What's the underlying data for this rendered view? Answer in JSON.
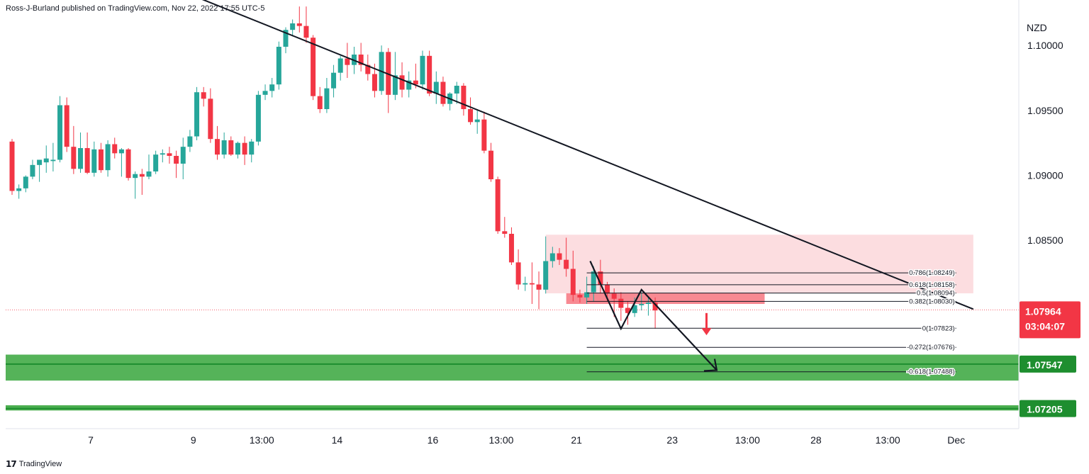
{
  "header": {
    "publisher_text": "Ross-J-Burland published on TradingView.com, Nov 22, 2022 17:55 UTC-5"
  },
  "footer": {
    "brand_label": "TradingView",
    "logo_glyph": "17"
  },
  "colors": {
    "up": "#26a69a",
    "down": "#f23645",
    "zone": "#4caf50",
    "zone_line": "#1e8e2f",
    "pink_zone": "#fcdde0",
    "red_zone": "#f77c86",
    "line": "#131722",
    "arrow": "#f23645"
  },
  "chart_data": {
    "type": "candlestick",
    "symbol_unit": "NZD",
    "y_axis": {
      "ylim": [
        1.0705,
        1.1035
      ],
      "ticks": [
        "1.10000",
        "1.09500",
        "1.09000",
        "1.08500"
      ],
      "tick_values": [
        1.1,
        1.095,
        1.09,
        1.085
      ]
    },
    "x_axis": {
      "tick_labels": [
        "7",
        "9",
        "13:00",
        "14",
        "16",
        "13:00",
        "21",
        "23",
        "13:00",
        "28",
        "13:00",
        "Dec"
      ],
      "tick_index": [
        11.5,
        26.5,
        36.5,
        47.5,
        61.5,
        71.5,
        82.5,
        96.5,
        107.5,
        117.5,
        128,
        138
      ]
    },
    "candles": [
      {
        "o": 1.0926,
        "h": 1.0928,
        "l": 1.0885,
        "c": 1.0888
      },
      {
        "o": 1.0888,
        "h": 1.0893,
        "l": 1.0882,
        "c": 1.089
      },
      {
        "o": 1.089,
        "h": 1.09,
        "l": 1.0887,
        "c": 1.0899
      },
      {
        "o": 1.0899,
        "h": 1.0912,
        "l": 1.0897,
        "c": 1.0908
      },
      {
        "o": 1.0908,
        "h": 1.0911,
        "l": 1.0895,
        "c": 1.0912
      },
      {
        "o": 1.091,
        "h": 1.0923,
        "l": 1.0902,
        "c": 1.0913
      },
      {
        "o": 1.0911,
        "h": 1.0925,
        "l": 1.0903,
        "c": 1.0912
      },
      {
        "o": 1.0912,
        "h": 1.0961,
        "l": 1.091,
        "c": 1.0954
      },
      {
        "o": 1.0954,
        "h": 1.096,
        "l": 1.0918,
        "c": 1.0922
      },
      {
        "o": 1.0922,
        "h": 1.0938,
        "l": 1.0901,
        "c": 1.0905
      },
      {
        "o": 1.0905,
        "h": 1.0933,
        "l": 1.0902,
        "c": 1.0921
      },
      {
        "o": 1.0921,
        "h": 1.0933,
        "l": 1.0901,
        "c": 1.0902
      },
      {
        "o": 1.0902,
        "h": 1.0926,
        "l": 1.0899,
        "c": 1.092
      },
      {
        "o": 1.092,
        "h": 1.0925,
        "l": 1.0902,
        "c": 1.0904
      },
      {
        "o": 1.0904,
        "h": 1.0927,
        "l": 1.0899,
        "c": 1.0924
      },
      {
        "o": 1.0924,
        "h": 1.0929,
        "l": 1.0913,
        "c": 1.0917
      },
      {
        "o": 1.0917,
        "h": 1.0921,
        "l": 1.0899,
        "c": 1.092
      },
      {
        "o": 1.092,
        "h": 1.0921,
        "l": 1.0896,
        "c": 1.0898
      },
      {
        "o": 1.0898,
        "h": 1.0903,
        "l": 1.0882,
        "c": 1.0901
      },
      {
        "o": 1.0901,
        "h": 1.0905,
        "l": 1.0885,
        "c": 1.0899
      },
      {
        "o": 1.0899,
        "h": 1.0916,
        "l": 1.0897,
        "c": 1.0903
      },
      {
        "o": 1.0903,
        "h": 1.0919,
        "l": 1.0901,
        "c": 1.0916
      },
      {
        "o": 1.0916,
        "h": 1.092,
        "l": 1.091,
        "c": 1.0917
      },
      {
        "o": 1.0917,
        "h": 1.0922,
        "l": 1.0909,
        "c": 1.0915
      },
      {
        "o": 1.0915,
        "h": 1.0919,
        "l": 1.0898,
        "c": 1.0909
      },
      {
        "o": 1.0909,
        "h": 1.0929,
        "l": 1.0897,
        "c": 1.0922
      },
      {
        "o": 1.0922,
        "h": 1.0935,
        "l": 1.0918,
        "c": 1.093
      },
      {
        "o": 1.093,
        "h": 1.0968,
        "l": 1.0927,
        "c": 1.0964
      },
      {
        "o": 1.0964,
        "h": 1.0968,
        "l": 1.0953,
        "c": 1.0959
      },
      {
        "o": 1.0959,
        "h": 1.0967,
        "l": 1.0925,
        "c": 1.0928
      },
      {
        "o": 1.0928,
        "h": 1.0938,
        "l": 1.0912,
        "c": 1.0916
      },
      {
        "o": 1.0916,
        "h": 1.0933,
        "l": 1.0913,
        "c": 1.0927
      },
      {
        "o": 1.0927,
        "h": 1.093,
        "l": 1.0915,
        "c": 1.0916
      },
      {
        "o": 1.0916,
        "h": 1.0926,
        "l": 1.0913,
        "c": 1.0925
      },
      {
        "o": 1.0925,
        "h": 1.093,
        "l": 1.0908,
        "c": 1.0916
      },
      {
        "o": 1.0916,
        "h": 1.0928,
        "l": 1.091,
        "c": 1.0926
      },
      {
        "o": 1.0926,
        "h": 1.0965,
        "l": 1.0923,
        "c": 1.0962
      },
      {
        "o": 1.0962,
        "h": 1.097,
        "l": 1.0958,
        "c": 1.0965
      },
      {
        "o": 1.0965,
        "h": 1.0975,
        "l": 1.096,
        "c": 1.097
      },
      {
        "o": 1.097,
        "h": 1.1003,
        "l": 1.0966,
        "c": 1.0999
      },
      {
        "o": 1.0999,
        "h": 1.1014,
        "l": 1.0994,
        "c": 1.1012
      },
      {
        "o": 1.1012,
        "h": 1.102,
        "l": 1.1007,
        "c": 1.1017
      },
      {
        "o": 1.1017,
        "h": 1.103,
        "l": 1.101,
        "c": 1.1015
      },
      {
        "o": 1.1015,
        "h": 1.103,
        "l": 1.1002,
        "c": 1.1006
      },
      {
        "o": 1.1006,
        "h": 1.1008,
        "l": 1.0958,
        "c": 1.0961
      },
      {
        "o": 1.0961,
        "h": 1.0968,
        "l": 1.0948,
        "c": 1.0951
      },
      {
        "o": 1.0951,
        "h": 1.0975,
        "l": 1.0948,
        "c": 1.0967
      },
      {
        "o": 1.0967,
        "h": 1.0985,
        "l": 1.096,
        "c": 1.0979
      },
      {
        "o": 1.0979,
        "h": 1.0992,
        "l": 1.0973,
        "c": 1.099
      },
      {
        "o": 1.099,
        "h": 1.1002,
        "l": 1.0975,
        "c": 1.0985
      },
      {
        "o": 1.0985,
        "h": 1.0999,
        "l": 1.0978,
        "c": 1.0993
      },
      {
        "o": 1.0993,
        "h": 1.1002,
        "l": 1.098,
        "c": 1.0985
      },
      {
        "o": 1.0985,
        "h": 1.0993,
        "l": 1.0973,
        "c": 1.0978
      },
      {
        "o": 1.0978,
        "h": 1.0986,
        "l": 1.096,
        "c": 1.0965
      },
      {
        "o": 1.0965,
        "h": 1.1,
        "l": 1.0962,
        "c": 1.0995
      },
      {
        "o": 1.0995,
        "h": 1.0998,
        "l": 1.0948,
        "c": 1.0962
      },
      {
        "o": 1.0962,
        "h": 1.0995,
        "l": 1.0958,
        "c": 1.0977
      },
      {
        "o": 1.0977,
        "h": 1.0987,
        "l": 1.096,
        "c": 1.0966
      },
      {
        "o": 1.0966,
        "h": 1.098,
        "l": 1.096,
        "c": 1.0973
      },
      {
        "o": 1.0973,
        "h": 1.0986,
        "l": 1.0967,
        "c": 1.097
      },
      {
        "o": 1.097,
        "h": 1.0996,
        "l": 1.0966,
        "c": 1.0992
      },
      {
        "o": 1.0992,
        "h": 1.0996,
        "l": 1.0961,
        "c": 1.0963
      },
      {
        "o": 1.0963,
        "h": 1.098,
        "l": 1.0955,
        "c": 1.0972
      },
      {
        "o": 1.0972,
        "h": 1.0976,
        "l": 1.0953,
        "c": 1.0955
      },
      {
        "o": 1.0955,
        "h": 1.0964,
        "l": 1.095,
        "c": 1.0963
      },
      {
        "o": 1.0963,
        "h": 1.0972,
        "l": 1.0955,
        "c": 1.0969
      },
      {
        "o": 1.0969,
        "h": 1.0971,
        "l": 1.0946,
        "c": 1.0951
      },
      {
        "o": 1.0951,
        "h": 1.096,
        "l": 1.0939,
        "c": 1.0941
      },
      {
        "o": 1.0941,
        "h": 1.0951,
        "l": 1.0932,
        "c": 1.0943
      },
      {
        "o": 1.0943,
        "h": 1.0949,
        "l": 1.0917,
        "c": 1.0919
      },
      {
        "o": 1.0919,
        "h": 1.0925,
        "l": 1.0895,
        "c": 1.0897
      },
      {
        "o": 1.0897,
        "h": 1.0899,
        "l": 1.0855,
        "c": 1.0857
      },
      {
        "o": 1.0857,
        "h": 1.0868,
        "l": 1.0852,
        "c": 1.0855
      },
      {
        "o": 1.0855,
        "h": 1.086,
        "l": 1.0831,
        "c": 1.0833
      },
      {
        "o": 1.0833,
        "h": 1.0843,
        "l": 1.0812,
        "c": 1.0816
      },
      {
        "o": 1.0816,
        "h": 1.0822,
        "l": 1.0811,
        "c": 1.0817
      },
      {
        "o": 1.0817,
        "h": 1.0833,
        "l": 1.0801,
        "c": 1.0816
      },
      {
        "o": 1.0816,
        "h": 1.0826,
        "l": 1.0797,
        "c": 1.0812
      },
      {
        "o": 1.0812,
        "h": 1.0853,
        "l": 1.0809,
        "c": 1.0834
      },
      {
        "o": 1.0834,
        "h": 1.0845,
        "l": 1.0829,
        "c": 1.084
      },
      {
        "o": 1.084,
        "h": 1.0844,
        "l": 1.0831,
        "c": 1.0835
      },
      {
        "o": 1.0835,
        "h": 1.0852,
        "l": 1.0822,
        "c": 1.0828
      },
      {
        "o": 1.0828,
        "h": 1.0842,
        "l": 1.0803,
        "c": 1.0808
      },
      {
        "o": 1.0808,
        "h": 1.0812,
        "l": 1.0802,
        "c": 1.0806
      },
      {
        "o": 1.0806,
        "h": 1.0822,
        "l": 1.0801,
        "c": 1.081
      },
      {
        "o": 1.081,
        "h": 1.083,
        "l": 1.0803,
        "c": 1.0826
      },
      {
        "o": 1.0826,
        "h": 1.0835,
        "l": 1.0809,
        "c": 1.0816
      },
      {
        "o": 1.0816,
        "h": 1.0818,
        "l": 1.0803,
        "c": 1.0809
      },
      {
        "o": 1.0809,
        "h": 1.0813,
        "l": 1.0791,
        "c": 1.0805
      },
      {
        "o": 1.0805,
        "h": 1.081,
        "l": 1.0788,
        "c": 1.0798
      },
      {
        "o": 1.0798,
        "h": 1.0803,
        "l": 1.0785,
        "c": 1.0794
      },
      {
        "o": 1.0794,
        "h": 1.0806,
        "l": 1.0791,
        "c": 1.08
      },
      {
        "o": 1.08,
        "h": 1.081,
        "l": 1.0796,
        "c": 1.0801
      },
      {
        "o": 1.0801,
        "h": 1.0807,
        "l": 1.0792,
        "c": 1.0802
      },
      {
        "o": 1.0802,
        "h": 1.0806,
        "l": 1.0782,
        "c": 1.0796
      }
    ],
    "current_price": {
      "value": 1.07964,
      "label": "1.07964",
      "countdown": "03:04:07"
    },
    "trendline": {
      "start": [
        20,
        1.1052
      ],
      "end": [
        140.5,
        1.0797
      ]
    },
    "pink_zone": {
      "x0": 78,
      "x1": 140.5,
      "top": 1.08543,
      "bottom": 1.08092
    },
    "red_zone": {
      "x0": 81,
      "x1": 110,
      "top": 1.08092,
      "bottom": 1.0801
    },
    "fibonacci": {
      "x0": 84,
      "x1": 138,
      "levels": [
        {
          "value": 1.08249,
          "label": "0.786(1.08249)"
        },
        {
          "value": 1.08158,
          "label": "0.618(1.08158)"
        },
        {
          "value": 1.08094,
          "label": "0.5(1.08094)"
        },
        {
          "value": 1.0803,
          "label": "0.382(1.08030)"
        },
        {
          "value": 1.07823,
          "label": "0(1.07823)"
        },
        {
          "value": 1.07676,
          "label": "-0.272(1.07676)"
        },
        {
          "value": 1.07488,
          "label": "-0.618(1.07488)"
        }
      ]
    },
    "projection_path": [
      [
        84.5,
        1.0834
      ],
      [
        89,
        1.0782
      ],
      [
        92,
        1.0812
      ],
      [
        103,
        1.075
      ]
    ],
    "projection_arrow_tip": [
      103,
      1.075
    ],
    "down_arrow": {
      "x": 101.5,
      "top": 1.0794,
      "bottom": 1.0778
    },
    "support_zones": [
      {
        "top": 1.0762,
        "bottom": 1.0742,
        "line": 1.07547,
        "label": "1.07547"
      },
      {
        "top": 1.0723,
        "bottom": 1.0719,
        "line": 1.07205,
        "label": "1.07205"
      }
    ]
  }
}
